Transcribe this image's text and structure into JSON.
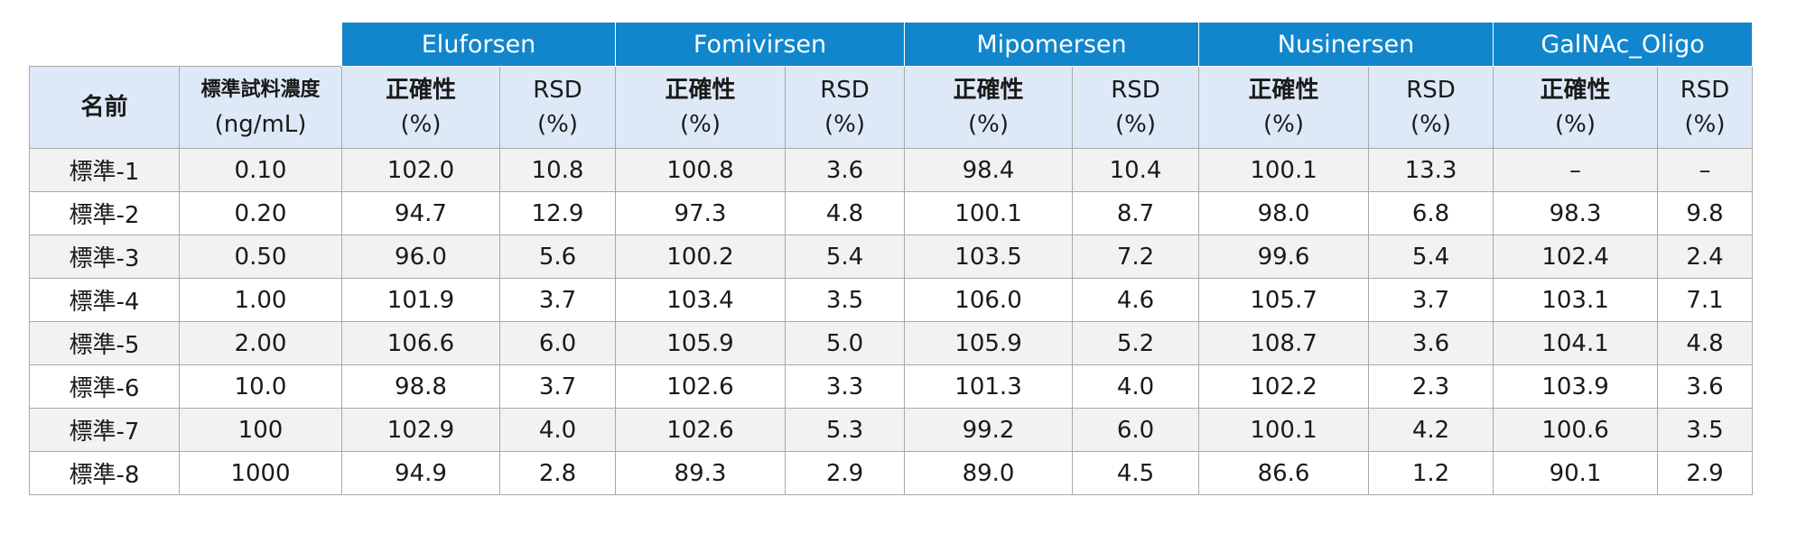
{
  "table": {
    "groups": [
      "Eluforsen",
      "Fomivirsen",
      "Mipomersen",
      "Nusinersen",
      "GalNAc_Oligo"
    ],
    "name_header": "名前",
    "conc_header": {
      "label": "標準試料濃度",
      "unit": "(ng/mL)"
    },
    "accuracy_header": {
      "label": "正確性",
      "unit": "(%)"
    },
    "rsd_header": {
      "label": "RSD",
      "unit": "(%)"
    },
    "rows": [
      {
        "name": "標準-1",
        "conc": "0.10",
        "values": [
          "102.0",
          "10.8",
          "100.8",
          "3.6",
          "98.4",
          "10.4",
          "100.1",
          "13.3",
          "–",
          "–"
        ]
      },
      {
        "name": "標準-2",
        "conc": "0.20",
        "values": [
          "94.7",
          "12.9",
          "97.3",
          "4.8",
          "100.1",
          "8.7",
          "98.0",
          "6.8",
          "98.3",
          "9.8"
        ]
      },
      {
        "name": "標準-3",
        "conc": "0.50",
        "values": [
          "96.0",
          "5.6",
          "100.2",
          "5.4",
          "103.5",
          "7.2",
          "99.6",
          "5.4",
          "102.4",
          "2.4"
        ]
      },
      {
        "name": "標準-4",
        "conc": "1.00",
        "values": [
          "101.9",
          "3.7",
          "103.4",
          "3.5",
          "106.0",
          "4.6",
          "105.7",
          "3.7",
          "103.1",
          "7.1"
        ]
      },
      {
        "name": "標準-5",
        "conc": "2.00",
        "values": [
          "106.6",
          "6.0",
          "105.9",
          "5.0",
          "105.9",
          "5.2",
          "108.7",
          "3.6",
          "104.1",
          "4.8"
        ]
      },
      {
        "name": "標準-6",
        "conc": "10.0",
        "values": [
          "98.8",
          "3.7",
          "102.6",
          "3.3",
          "101.3",
          "4.0",
          "102.2",
          "2.3",
          "103.9",
          "3.6"
        ]
      },
      {
        "name": "標準-7",
        "conc": "100",
        "values": [
          "102.9",
          "4.0",
          "102.6",
          "5.3",
          "99.2",
          "6.0",
          "100.1",
          "4.2",
          "100.6",
          "3.5"
        ]
      },
      {
        "name": "標準-8",
        "conc": "1000",
        "values": [
          "94.9",
          "2.8",
          "89.3",
          "2.9",
          "89.0",
          "4.5",
          "86.6",
          "1.2",
          "90.1",
          "2.9"
        ]
      }
    ]
  },
  "colors": {
    "group_header_bg": "#1186cc",
    "subheader_bg": "#dde9f7",
    "row_alt_bg": "#f2f2f2",
    "border": "#a9a9a9"
  }
}
